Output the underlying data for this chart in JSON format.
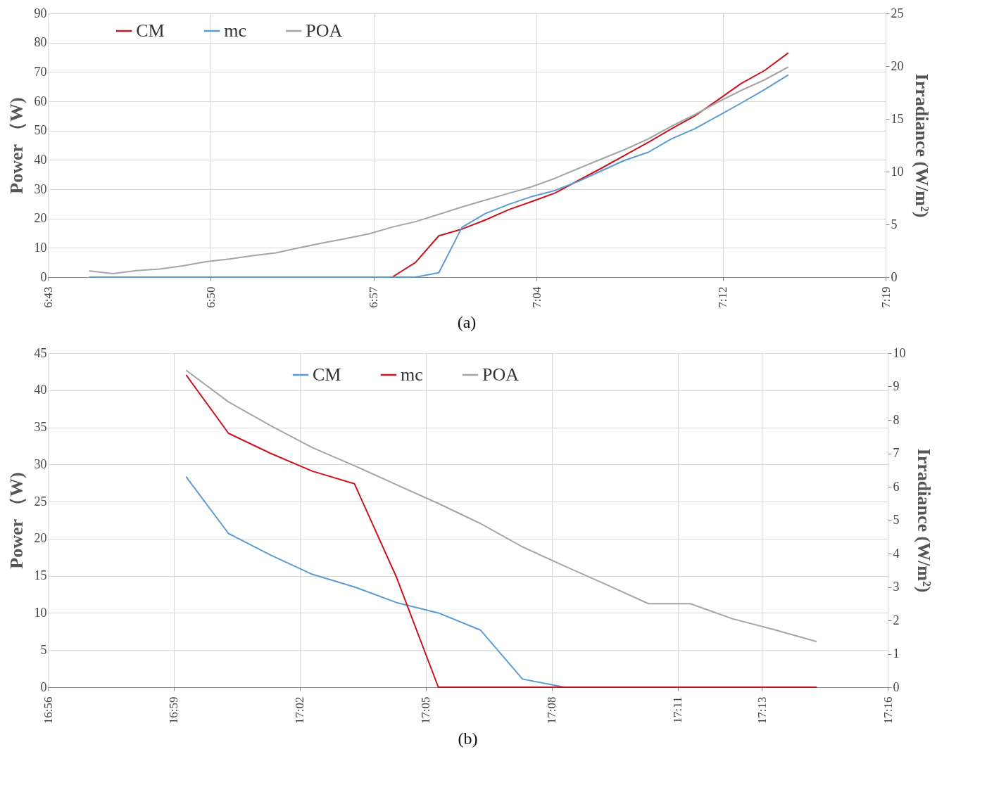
{
  "chart_data": [
    {
      "type": "line",
      "title": "(a)",
      "ylabel": "Power （W)",
      "y2label": "Irradiance (W/m²)",
      "legend": "top left",
      "grid": true,
      "xlim": [
        6.7167,
        7.3167
      ],
      "xticks": [
        {
          "value": 6.7167,
          "label": "6:43"
        },
        {
          "value": 6.8333,
          "label": "6:50"
        },
        {
          "value": 6.95,
          "label": "6:57"
        },
        {
          "value": 7.0667,
          "label": "7:04"
        },
        {
          "value": 7.2,
          "label": "7:12"
        },
        {
          "value": 7.3167,
          "label": "7:19"
        }
      ],
      "ylim": [
        0,
        90
      ],
      "yticks": [
        0,
        10,
        20,
        30,
        40,
        50,
        60,
        70,
        80,
        90
      ],
      "y2lim": [
        0,
        25
      ],
      "y2ticks": [
        0,
        5,
        10,
        15,
        20,
        25
      ],
      "x": [
        6.7467,
        6.7633,
        6.78,
        6.7967,
        6.8133,
        6.83,
        6.8467,
        6.8633,
        6.88,
        6.8967,
        6.9133,
        6.93,
        6.9467,
        6.9633,
        6.98,
        6.9967,
        7.0133,
        7.03,
        7.0467,
        7.0633,
        7.08,
        7.0967,
        7.1133,
        7.13,
        7.1467,
        7.1633,
        7.18,
        7.1967,
        7.2133,
        7.23,
        7.2467
      ],
      "series": [
        {
          "name": "CM",
          "color": "#c8141e",
          "values": [
            null,
            null,
            null,
            null,
            null,
            null,
            null,
            null,
            null,
            null,
            null,
            null,
            0,
            0,
            5.0,
            14.1,
            16.4,
            19.5,
            23.0,
            25.8,
            28.7,
            33.0,
            37.2,
            41.6,
            46.0,
            50.6,
            55.0,
            60.5,
            66.1,
            70.5,
            76.4
          ]
        },
        {
          "name": "mc",
          "color": "#5b9bd5",
          "values": [
            0,
            0,
            0,
            0,
            0,
            0,
            0,
            0,
            0,
            0,
            0,
            0,
            0,
            0,
            0,
            1.5,
            17.0,
            21.7,
            24.8,
            27.5,
            29.6,
            32.7,
            36.3,
            39.9,
            42.6,
            47.2,
            50.6,
            55.0,
            59.4,
            64.0,
            68.9
          ]
        },
        {
          "name": "POA",
          "color": "#a5a5a5",
          "axis": "y2",
          "values": [
            0.58,
            0.34,
            0.61,
            0.77,
            1.06,
            1.46,
            1.72,
            2.04,
            2.3,
            2.78,
            3.23,
            3.65,
            4.1,
            4.74,
            5.26,
            5.95,
            6.65,
            7.3,
            7.94,
            8.57,
            9.37,
            10.3,
            11.2,
            12.1,
            13.1,
            14.3,
            15.4,
            16.6,
            17.7,
            18.7,
            19.9
          ]
        }
      ]
    },
    {
      "type": "line",
      "title": "(b)",
      "ylabel": "Power （W)",
      "y2label": "Irradiance (W/m²)",
      "legend": "top",
      "grid": true,
      "xlim": [
        16.9333,
        17.2667
      ],
      "xticks": [
        {
          "value": 16.9333,
          "label": "16:56"
        },
        {
          "value": 16.9833,
          "label": "16:59"
        },
        {
          "value": 17.0333,
          "label": "17:02"
        },
        {
          "value": 17.0833,
          "label": "17:05"
        },
        {
          "value": 17.1333,
          "label": "17:08"
        },
        {
          "value": 17.1833,
          "label": "17:11"
        },
        {
          "value": 17.2167,
          "label": "17:13"
        },
        {
          "value": 17.2667,
          "label": "17:16"
        }
      ],
      "ylim": [
        0,
        45
      ],
      "yticks": [
        0,
        5,
        10,
        15,
        20,
        25,
        30,
        35,
        40,
        45
      ],
      "y2lim": [
        0,
        10
      ],
      "y2ticks": [
        0,
        1,
        2,
        3,
        4,
        5,
        6,
        7,
        8,
        9,
        10
      ],
      "x": [
        16.9883,
        17.005,
        17.0217,
        17.0383,
        17.055,
        17.0717,
        17.0883,
        17.105,
        17.1217,
        17.1383,
        17.155,
        17.1717,
        17.1883,
        17.205,
        17.2217,
        17.2383
      ],
      "series": [
        {
          "name": "CM",
          "color": "#5b9bd5",
          "values": [
            28.3,
            20.7,
            17.8,
            15.2,
            13.5,
            11.4,
            10.0,
            7.7,
            1.1,
            0,
            0,
            null,
            null,
            null,
            null,
            null
          ]
        },
        {
          "name": "mc",
          "color": "#c8141e",
          "values": [
            42.0,
            34.2,
            31.5,
            29.1,
            27.4,
            14.8,
            0,
            0,
            0,
            0,
            0,
            0,
            0,
            0,
            0,
            0
          ]
        },
        {
          "name": "POA",
          "color": "#a5a5a5",
          "axis": "y2",
          "values": [
            9.48,
            8.54,
            7.83,
            7.17,
            6.63,
            6.06,
            5.5,
            4.9,
            4.2,
            3.63,
            3.07,
            2.5,
            2.5,
            2.05,
            1.72,
            1.37
          ]
        }
      ]
    }
  ]
}
